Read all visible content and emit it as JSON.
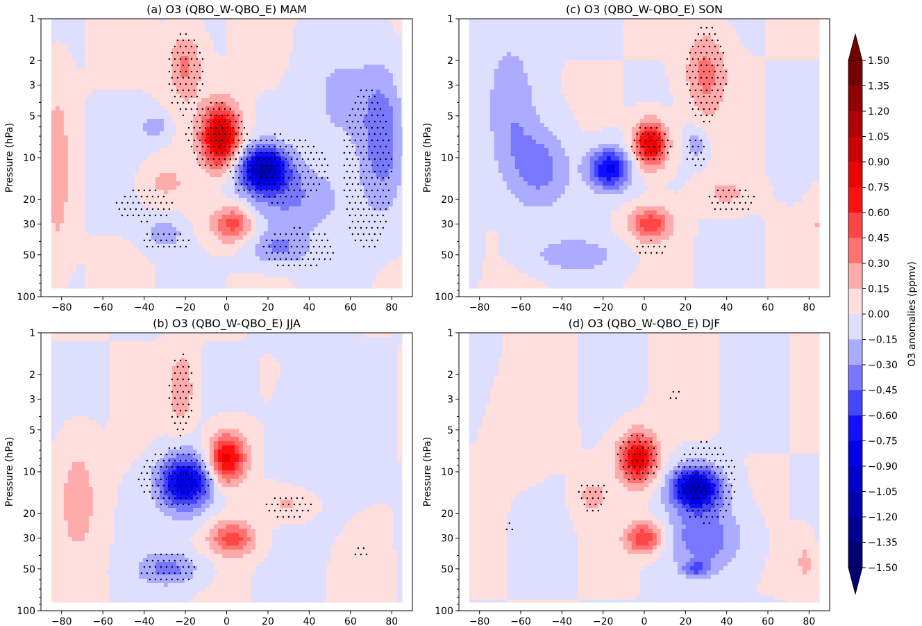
{
  "chart_data": [
    {
      "type": "heatmap",
      "title": "(a) O3 (QBO_W-QBO_E) MAM",
      "xlabel": "",
      "ylabel": "Pressure (hPa)",
      "xlim": [
        -90,
        90
      ],
      "ylim": [
        100,
        1
      ],
      "yscale": "log",
      "x_ticks": [
        "−80",
        "−60",
        "−40",
        "−20",
        "0",
        "20",
        "40",
        "60",
        "80"
      ],
      "y_ticks": [
        "1",
        "2",
        "3",
        "5",
        "10",
        "20",
        "30",
        "50",
        "100"
      ],
      "anomalies": [
        {
          "lat": -3,
          "p": 7,
          "value": 1.05,
          "wlat": 9,
          "wlogp": 0.22
        },
        {
          "lat": -20,
          "p": 2.2,
          "value": 0.35,
          "wlat": 8,
          "wlogp": 0.25
        },
        {
          "lat": -30,
          "p": 15,
          "value": 0.2,
          "wlat": 10,
          "wlogp": 0.12
        },
        {
          "lat": -82,
          "p": 12,
          "value": 0.25,
          "wlat": 6,
          "wlogp": 0.6
        },
        {
          "lat": 3,
          "p": 30,
          "value": 0.55,
          "wlat": 10,
          "wlogp": 0.13
        },
        {
          "lat": 18,
          "p": 12,
          "value": -1.0,
          "wlat": 12,
          "wlogp": 0.16
        },
        {
          "lat": 33,
          "p": 20,
          "value": -0.3,
          "wlat": 25,
          "wlogp": 0.25
        },
        {
          "lat": -30,
          "p": 35,
          "value": -0.3,
          "wlat": 8,
          "wlogp": 0.1
        },
        {
          "lat": -35,
          "p": 6,
          "value": -0.25,
          "wlat": 7,
          "wlogp": 0.1
        },
        {
          "lat": 25,
          "p": 45,
          "value": -0.3,
          "wlat": 15,
          "wlogp": 0.12
        },
        {
          "lat": 75,
          "p": 7,
          "value": -0.4,
          "wlat": 10,
          "wlogp": 0.5
        },
        {
          "lat": 55,
          "p": 4,
          "value": -0.2,
          "wlat": 15,
          "wlogp": 0.4
        }
      ],
      "stipple_regions": [
        {
          "lat": -5,
          "p": 7,
          "wlat": 15,
          "wlogp": 0.25
        },
        {
          "lat": 25,
          "p": 12,
          "wlat": 25,
          "wlogp": 0.25
        },
        {
          "lat": -20,
          "p": 2.5,
          "wlat": 9,
          "wlogp": 0.3
        },
        {
          "lat": -40,
          "p": 22,
          "wlat": 14,
          "wlogp": 0.12
        },
        {
          "lat": -30,
          "p": 40,
          "wlat": 12,
          "wlogp": 0.08
        },
        {
          "lat": 35,
          "p": 45,
          "wlat": 18,
          "wlogp": 0.15
        },
        {
          "lat": 68,
          "p": 12,
          "wlat": 12,
          "wlogp": 0.6
        }
      ]
    },
    {
      "type": "heatmap",
      "title": "(c) O3 (QBO_W-QBO_E) SON",
      "xlabel": "",
      "ylabel": "Pressure (hPa)",
      "xlim": [
        -90,
        90
      ],
      "ylim": [
        100,
        1
      ],
      "yscale": "log",
      "x_ticks": [
        "−80",
        "−60",
        "−40",
        "−20",
        "0",
        "20",
        "40",
        "60",
        "80"
      ],
      "y_ticks": [
        "1",
        "2",
        "3",
        "5",
        "10",
        "20",
        "30",
        "50",
        "100"
      ],
      "anomalies": [
        {
          "lat": 3,
          "p": 8,
          "value": 0.9,
          "wlat": 8,
          "wlogp": 0.16
        },
        {
          "lat": 30,
          "p": 2.5,
          "value": 0.35,
          "wlat": 10,
          "wlogp": 0.3
        },
        {
          "lat": 40,
          "p": 18,
          "value": 0.2,
          "wlat": 11,
          "wlogp": 0.1
        },
        {
          "lat": 3,
          "p": 30,
          "value": 0.55,
          "wlat": 10,
          "wlogp": 0.12
        },
        {
          "lat": -17,
          "p": 12,
          "value": -0.8,
          "wlat": 10,
          "wlogp": 0.15
        },
        {
          "lat": -50,
          "p": 12,
          "value": -0.35,
          "wlat": 15,
          "wlogp": 0.3
        },
        {
          "lat": -65,
          "p": 4,
          "value": -0.25,
          "wlat": 12,
          "wlogp": 0.5
        },
        {
          "lat": -35,
          "p": 50,
          "value": -0.25,
          "wlat": 22,
          "wlogp": 0.12
        },
        {
          "lat": 25,
          "p": 8,
          "value": -0.25,
          "wlat": 5,
          "wlogp": 0.12
        },
        {
          "lat": 85,
          "p": 30,
          "value": 0.15,
          "wlat": 5,
          "wlogp": 0.2
        }
      ],
      "stipple_regions": [
        {
          "lat": 3,
          "p": 8,
          "wlat": 10,
          "wlogp": 0.14
        },
        {
          "lat": 30,
          "p": 2.5,
          "wlat": 10,
          "wlogp": 0.35
        },
        {
          "lat": 42,
          "p": 20,
          "wlat": 12,
          "wlogp": 0.1
        },
        {
          "lat": 3,
          "p": 45,
          "wlat": 9,
          "wlogp": 0.06
        },
        {
          "lat": 25,
          "p": 9,
          "wlat": 5,
          "wlogp": 0.12
        }
      ]
    },
    {
      "type": "heatmap",
      "title": "(b) O3 (QBO_W-QBO_E) JJA",
      "xlabel": "",
      "ylabel": "Pressure (hPa)",
      "xlim": [
        -90,
        90
      ],
      "ylim": [
        100,
        1
      ],
      "yscale": "log",
      "x_ticks": [
        "−80",
        "−60",
        "−40",
        "−20",
        "0",
        "20",
        "40",
        "60",
        "80"
      ],
      "y_ticks": [
        "1",
        "2",
        "3",
        "5",
        "10",
        "20",
        "30",
        "50",
        "100"
      ],
      "anomalies": [
        {
          "lat": 0,
          "p": 8,
          "value": 0.85,
          "wlat": 9,
          "wlogp": 0.18
        },
        {
          "lat": -22,
          "p": 2.5,
          "value": 0.3,
          "wlat": 6,
          "wlogp": 0.25
        },
        {
          "lat": -20,
          "p": 12,
          "value": -0.9,
          "wlat": 13,
          "wlogp": 0.2
        },
        {
          "lat": -28,
          "p": 50,
          "value": -0.35,
          "wlat": 15,
          "wlogp": 0.12
        },
        {
          "lat": 3,
          "p": 30,
          "value": 0.5,
          "wlat": 11,
          "wlogp": 0.12
        },
        {
          "lat": 30,
          "p": 17,
          "value": 0.2,
          "wlat": 14,
          "wlogp": 0.12
        },
        {
          "lat": -72,
          "p": 15,
          "value": 0.25,
          "wlat": 9,
          "wlogp": 0.4
        },
        {
          "lat": 45,
          "p": 6,
          "value": -0.12,
          "wlat": 20,
          "wlogp": 0.5
        }
      ],
      "stipple_regions": [
        {
          "lat": -25,
          "p": 11,
          "wlat": 18,
          "wlogp": 0.22
        },
        {
          "lat": -22,
          "p": 2.8,
          "wlat": 6,
          "wlogp": 0.3
        },
        {
          "lat": -28,
          "p": 50,
          "wlat": 14,
          "wlogp": 0.12
        },
        {
          "lat": 30,
          "p": 18,
          "wlat": 12,
          "wlogp": 0.09
        },
        {
          "lat": 65,
          "p": 38,
          "wlat": 3,
          "wlogp": 0.04
        }
      ]
    },
    {
      "type": "heatmap",
      "title": "(d) O3 (QBO_W-QBO_E) DJF",
      "xlabel": "",
      "ylabel": "Pressure (hPa)",
      "xlim": [
        -90,
        90
      ],
      "ylim": [
        100,
        1
      ],
      "yscale": "log",
      "x_ticks": [
        "−80",
        "−60",
        "−40",
        "−20",
        "0",
        "20",
        "40",
        "60",
        "80"
      ],
      "y_ticks": [
        "1",
        "2",
        "3",
        "5",
        "10",
        "20",
        "30",
        "50",
        "100"
      ],
      "anomalies": [
        {
          "lat": -3,
          "p": 8,
          "value": 0.85,
          "wlat": 9,
          "wlogp": 0.18
        },
        {
          "lat": 25,
          "p": 13,
          "value": -1.0,
          "wlat": 12,
          "wlogp": 0.15
        },
        {
          "lat": 30,
          "p": 30,
          "value": -0.4,
          "wlat": 18,
          "wlogp": 0.25
        },
        {
          "lat": 0,
          "p": 30,
          "value": 0.6,
          "wlat": 9,
          "wlogp": 0.11
        },
        {
          "lat": -25,
          "p": 15,
          "value": 0.2,
          "wlat": 8,
          "wlogp": 0.13
        },
        {
          "lat": 25,
          "p": 50,
          "value": -0.4,
          "wlat": 6,
          "wlogp": 0.05
        },
        {
          "lat": 78,
          "p": 45,
          "value": 0.2,
          "wlat": 5,
          "wlogp": 0.2
        },
        {
          "lat": -60,
          "p": 5,
          "value": 0.08,
          "wlat": 15,
          "wlogp": 0.35
        }
      ],
      "stipple_regions": [
        {
          "lat": -3,
          "p": 8,
          "wlat": 10,
          "wlogp": 0.18
        },
        {
          "lat": 30,
          "p": 12,
          "wlat": 15,
          "wlogp": 0.3
        },
        {
          "lat": -25,
          "p": 15,
          "wlat": 7,
          "wlogp": 0.12
        },
        {
          "lat": -65,
          "p": 25,
          "wlat": 3,
          "wlogp": 0.04
        },
        {
          "lat": 15,
          "p": 2.8,
          "wlat": 3,
          "wlogp": 0.05
        }
      ]
    }
  ],
  "colorbar": {
    "label": "O3 anomalies (ppmv)",
    "levels": [
      "1.50",
      "1.35",
      "1.20",
      "1.05",
      "0.90",
      "0.75",
      "0.60",
      "0.45",
      "0.30",
      "0.15",
      "0.00",
      "−0.15",
      "−0.30",
      "−0.45",
      "−0.60",
      "−0.75",
      "−0.90",
      "−1.05",
      "−1.20",
      "−1.35",
      "−1.50"
    ],
    "colors": [
      "#750000",
      "#930000",
      "#b10000",
      "#cf0000",
      "#ed0000",
      "#ff1010",
      "#ff4545",
      "#ff7272",
      "#ffabab",
      "#ffdede",
      "#dedeff",
      "#ababff",
      "#7878ff",
      "#4545ff",
      "#1010ff",
      "#0000ea",
      "#0000cc",
      "#0000ae",
      "#000090",
      "#000072"
    ]
  }
}
